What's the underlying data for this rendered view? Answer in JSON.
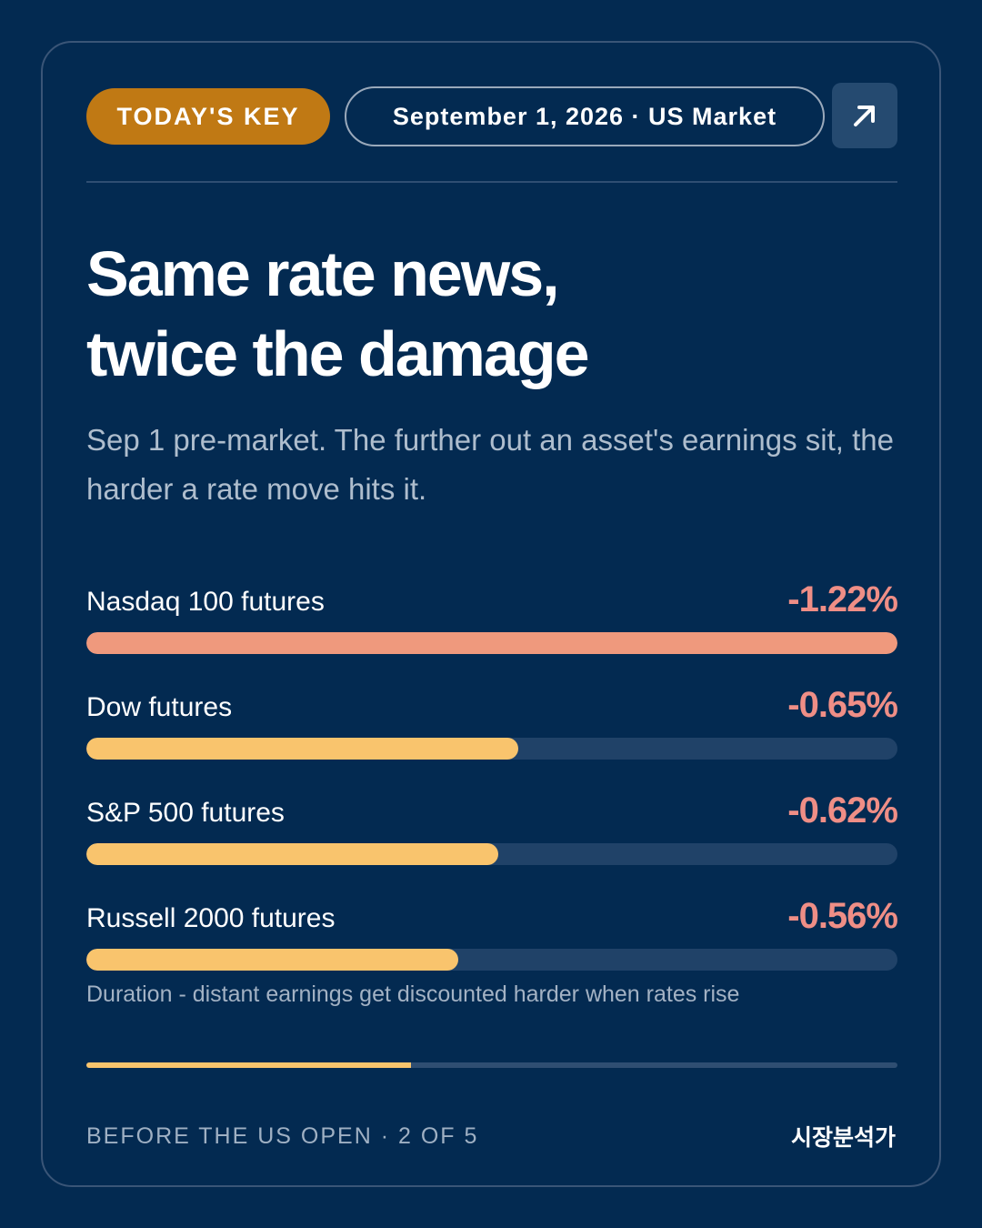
{
  "header": {
    "badge": "TODAY'S KEY",
    "date_market": "September 1, 2026 · US Market",
    "open_icon": "arrow-up-right-icon"
  },
  "headline": {
    "line1": "Same rate news,",
    "line2": "twice the damage"
  },
  "subtitle": "Sep 1 pre-market. The further out an asset's earnings sit, the harder a rate move hits it.",
  "chart_data": {
    "type": "bar",
    "orientation": "horizontal",
    "categories": [
      "Nasdaq 100 futures",
      "Dow futures",
      "S&P 500 futures",
      "Russell 2000 futures"
    ],
    "values": [
      -1.22,
      -0.65,
      -0.62,
      -0.56
    ],
    "value_labels": [
      "-1.22%",
      "-0.65%",
      "-0.62%",
      "-0.56%"
    ],
    "bar_colors": [
      "#ef997d",
      "#f9c46d",
      "#f9c46d",
      "#f9c46d"
    ],
    "value_color": "#ef8e86",
    "scale_max_abs": 1.22
  },
  "note": "Duration - distant earnings get discounted harder when rates rise",
  "progress": {
    "current": 2,
    "total": 5
  },
  "footer": {
    "left": "BEFORE THE US OPEN · 2 OF 5",
    "right": "시장분석가"
  }
}
